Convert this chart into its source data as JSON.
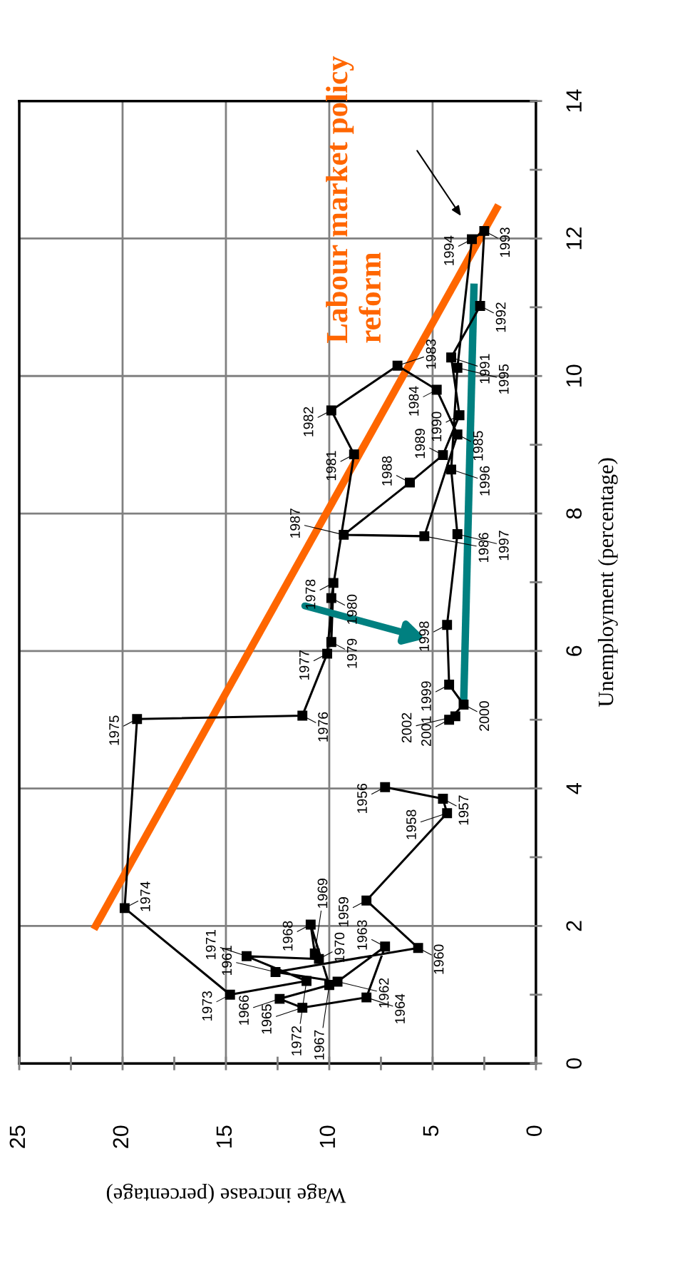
{
  "chart_data": {
    "type": "line",
    "xlabel": "Wage increase (percentage)",
    "ylabel": "Unemployment (percentage)",
    "xlim": [
      25,
      0
    ],
    "xticks": [
      25,
      20,
      15,
      10,
      5,
      0
    ],
    "ylim": [
      0,
      14
    ],
    "yticks": [
      0,
      2,
      4,
      6,
      8,
      10,
      12,
      14
    ],
    "grid": true,
    "legend": false,
    "series": [
      {
        "color": "#000000",
        "marker": "square",
        "x": [
          7.3,
          4.5,
          4.3,
          8.2,
          5.7,
          12.6,
          9.6,
          7.3,
          8.2,
          11.3,
          12.4,
          10.0,
          10.9,
          10.7,
          10.5,
          14.0,
          11.1,
          14.8,
          19.9,
          19.3,
          11.3,
          10.1,
          9.8,
          9.9,
          9.9,
          8.8,
          9.9,
          6.7,
          4.8,
          3.8,
          5.4,
          9.3,
          6.1,
          4.5,
          3.7,
          4.1,
          2.7,
          2.5,
          3.1,
          3.8,
          4.1,
          3.8,
          4.3,
          4.2,
          3.5,
          4.2,
          3.9
        ],
        "values": [
          4.02,
          3.85,
          3.64,
          2.37,
          1.68,
          1.33,
          1.19,
          1.7,
          0.96,
          0.81,
          0.94,
          1.14,
          2.02,
          1.6,
          1.52,
          1.56,
          1.2,
          1.0,
          2.26,
          5.01,
          5.06,
          5.96,
          6.99,
          6.13,
          6.77,
          8.86,
          9.5,
          10.15,
          9.8,
          9.15,
          7.67,
          7.69,
          8.45,
          8.85,
          9.43,
          10.27,
          11.02,
          12.11,
          11.99,
          10.12,
          8.64,
          7.7,
          6.38,
          5.51,
          5.22,
          5.0,
          5.05
        ]
      },
      {
        "color": "#ff6600",
        "marker": "none",
        "x": [
          21.3,
          1.9
        ],
        "values": [
          2.0,
          12.44
        ]
      },
      {
        "color": "#008080",
        "marker": "none",
        "x": [
          3.5,
          3.0
        ],
        "values": [
          5.21,
          11.29
        ]
      }
    ],
    "annotations": [
      "Labour market policy\nreform",
      {
        "text": "1956",
        "x": 7.3,
        "y": 4.02
      },
      {
        "text": "1957",
        "x": 4.5,
        "y": 3.85
      },
      {
        "text": "1958",
        "x": 4.3,
        "y": 3.64
      },
      {
        "text": "1959",
        "x": 8.2,
        "y": 2.37
      },
      {
        "text": "1960",
        "x": 5.7,
        "y": 1.68
      },
      {
        "text": "1961",
        "x": 12.6,
        "y": 1.33
      },
      {
        "text": "1962",
        "x": 9.6,
        "y": 1.19
      },
      {
        "text": "1963",
        "x": 7.3,
        "y": 1.7
      },
      {
        "text": "1964",
        "x": 8.2,
        "y": 0.96
      },
      {
        "text": "1965",
        "x": 11.3,
        "y": 0.81
      },
      {
        "text": "1966",
        "x": 12.4,
        "y": 0.94
      },
      {
        "text": "1967",
        "x": 10.0,
        "y": 1.14
      },
      {
        "text": "1968",
        "x": 10.9,
        "y": 2.02
      },
      {
        "text": "1969",
        "x": 10.7,
        "y": 1.6
      },
      {
        "text": "1970",
        "x": 10.5,
        "y": 1.52
      },
      {
        "text": "1971",
        "x": 14.0,
        "y": 1.56
      },
      {
        "text": "1972",
        "x": 11.1,
        "y": 1.2
      },
      {
        "text": "1973",
        "x": 14.8,
        "y": 1.0
      },
      {
        "text": "1974",
        "x": 19.9,
        "y": 2.26
      },
      {
        "text": "1975",
        "x": 19.3,
        "y": 5.01
      },
      {
        "text": "1976",
        "x": 11.3,
        "y": 5.06
      },
      {
        "text": "1977",
        "x": 10.1,
        "y": 5.96
      },
      {
        "text": "1978",
        "x": 9.8,
        "y": 6.99
      },
      {
        "text": "1979",
        "x": 9.9,
        "y": 6.13
      },
      {
        "text": "1980",
        "x": 9.9,
        "y": 6.77
      },
      {
        "text": "1981",
        "x": 8.8,
        "y": 8.86
      },
      {
        "text": "1982",
        "x": 9.9,
        "y": 9.5
      },
      {
        "text": "1983",
        "x": 6.7,
        "y": 10.15
      },
      {
        "text": "1984",
        "x": 4.8,
        "y": 9.8
      },
      {
        "text": "1985",
        "x": 3.8,
        "y": 9.15
      },
      {
        "text": "1986",
        "x": 5.4,
        "y": 7.67
      },
      {
        "text": "1987",
        "x": 9.3,
        "y": 7.69
      },
      {
        "text": "1988",
        "x": 6.1,
        "y": 8.45
      },
      {
        "text": "1989",
        "x": 4.5,
        "y": 8.85
      },
      {
        "text": "1990",
        "x": 3.7,
        "y": 9.43
      },
      {
        "text": "1991",
        "x": 4.1,
        "y": 10.27
      },
      {
        "text": "1992",
        "x": 2.7,
        "y": 11.02
      },
      {
        "text": "1993",
        "x": 2.5,
        "y": 12.11
      },
      {
        "text": "1994",
        "x": 3.1,
        "y": 11.99
      },
      {
        "text": "1995",
        "x": 3.8,
        "y": 10.12
      },
      {
        "text": "1996",
        "x": 4.1,
        "y": 8.64
      },
      {
        "text": "1997",
        "x": 3.8,
        "y": 7.7
      },
      {
        "text": "1998",
        "x": 4.3,
        "y": 6.38
      },
      {
        "text": "1999",
        "x": 4.2,
        "y": 5.51
      },
      {
        "text": "2000",
        "x": 3.5,
        "y": 5.22
      },
      {
        "text": "2001",
        "x": 4.2,
        "y": 5.0
      },
      {
        "text": "2002",
        "x": 3.9,
        "y": 5.05
      }
    ]
  }
}
